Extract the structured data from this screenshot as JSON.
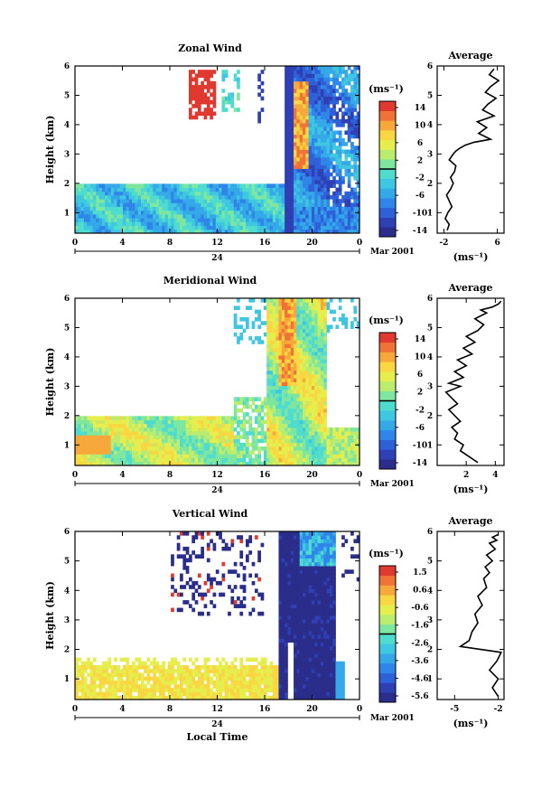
{
  "colors": {
    "scale": [
      "#2a2d8a",
      "#2f3fb4",
      "#2e60d8",
      "#2f86e8",
      "#35a8e8",
      "#3fc6e0",
      "#4fdccf",
      "#7fe6a0",
      "#b9ec6f",
      "#e6ee4e",
      "#f8d742",
      "#f7a83a",
      "#ef7336",
      "#e0392f"
    ]
  },
  "chart_data": [
    {
      "type": "heatmap",
      "title": "Zonal Wind",
      "ylabel": "Height (km)",
      "xlabel": "",
      "xlim": [
        0,
        24
      ],
      "ylim": [
        0.3,
        6
      ],
      "x_ticks": [
        "0",
        "4",
        "8",
        "12",
        "16",
        "20",
        "0"
      ],
      "y_ticks": [
        "1",
        "2",
        "3",
        "4",
        "5",
        "6"
      ],
      "day_label": "24",
      "date_label": "Mar 2001",
      "colorbar": {
        "unit": "(ms⁻¹)",
        "ticks": [
          "14",
          "10",
          "6",
          "2",
          "-2",
          "-6",
          "-10",
          "-14"
        ],
        "range": [
          -14,
          14
        ]
      },
      "average": {
        "title": "Average",
        "unit": "(ms⁻¹)",
        "x_ticks": [
          "-2",
          "6"
        ],
        "xlim": [
          -3,
          7
        ],
        "profile_x": [
          -1.5,
          -1.2,
          -1.8,
          -1.4,
          -0.8,
          -1.2,
          -1.6,
          -1.0,
          -0.6,
          -1.0,
          -0.4,
          -0.2,
          -1.2,
          -0.6,
          -0.2,
          0.4,
          1.2,
          2.5,
          5.0,
          3.2,
          4.4,
          3.0,
          5.5,
          3.8,
          4.6,
          5.8,
          4.2,
          5.0,
          6.2,
          4.8,
          5.5
        ],
        "profile_y": [
          0.4,
          0.6,
          0.8,
          1.0,
          1.2,
          1.4,
          1.6,
          1.8,
          2.0,
          2.2,
          2.4,
          2.6,
          2.8,
          3.0,
          3.1,
          3.2,
          3.3,
          3.4,
          3.5,
          3.7,
          3.9,
          4.1,
          4.3,
          4.5,
          4.7,
          4.9,
          5.1,
          5.3,
          5.5,
          5.7,
          5.9
        ]
      }
    },
    {
      "type": "heatmap",
      "title": "Meridional Wind",
      "ylabel": "Height (km)",
      "xlabel": "",
      "xlim": [
        0,
        24
      ],
      "ylim": [
        0.3,
        6
      ],
      "x_ticks": [
        "0",
        "4",
        "8",
        "12",
        "16",
        "20",
        "0"
      ],
      "y_ticks": [
        "1",
        "2",
        "3",
        "4",
        "5",
        "6"
      ],
      "day_label": "24",
      "date_label": "Mar 2001",
      "colorbar": {
        "unit": "(ms⁻¹)",
        "ticks": [
          "14",
          "10",
          "6",
          "2",
          "-2",
          "-6",
          "-10",
          "-14"
        ],
        "range": [
          -14,
          14
        ]
      },
      "average": {
        "title": "Average",
        "unit": "(ms⁻¹)",
        "x_ticks": [
          "2",
          "4"
        ],
        "xlim": [
          0,
          4.6
        ],
        "profile_x": [
          2.8,
          2.2,
          1.6,
          1.8,
          1.2,
          1.4,
          1.0,
          1.6,
          1.2,
          0.8,
          1.4,
          1.0,
          0.6,
          1.6,
          0.8,
          1.8,
          1.2,
          2.0,
          1.4,
          2.4,
          1.8,
          2.6,
          2.0,
          2.8,
          3.2,
          2.6,
          3.4,
          3.0,
          3.8,
          4.2,
          4.4
        ],
        "profile_y": [
          0.4,
          0.6,
          0.8,
          1.0,
          1.2,
          1.4,
          1.6,
          1.8,
          2.0,
          2.2,
          2.4,
          2.6,
          2.8,
          3.0,
          3.1,
          3.3,
          3.5,
          3.7,
          3.9,
          4.1,
          4.3,
          4.5,
          4.7,
          4.9,
          5.1,
          5.3,
          5.5,
          5.6,
          5.7,
          5.8,
          5.9
        ]
      }
    },
    {
      "type": "heatmap",
      "title": "Vertical Wind",
      "ylabel": "Height (km)",
      "xlabel": "Local Time",
      "xlim": [
        0,
        24
      ],
      "ylim": [
        0.3,
        6
      ],
      "x_ticks": [
        "0",
        "4",
        "8",
        "12",
        "16",
        "20",
        "0"
      ],
      "y_ticks": [
        "1",
        "2",
        "3",
        "4",
        "5",
        "6"
      ],
      "day_label": "24",
      "date_label": "Mar 2001",
      "colorbar": {
        "unit": "(ms⁻¹)",
        "ticks": [
          "1.5",
          "0.6",
          "-0.6",
          "-1.6",
          "-2.6",
          "-3.6",
          "-4.6",
          "-5.6"
        ],
        "range": [
          -6,
          2
        ]
      },
      "average": {
        "title": "Average",
        "unit": "(ms⁻¹)",
        "x_ticks": [
          "-5",
          "-2"
        ],
        "xlim": [
          -6.2,
          -1.6
        ],
        "profile_x": [
          -2.0,
          -2.4,
          -2.0,
          -2.6,
          -2.1,
          -1.8,
          -4.6,
          -4.0,
          -3.8,
          -3.4,
          -3.6,
          -3.1,
          -3.4,
          -2.8,
          -3.0,
          -2.6,
          -2.9,
          -2.4,
          -2.8,
          -2.2,
          -2.6,
          -2.1,
          -2.4,
          -2.0
        ],
        "profile_y": [
          0.4,
          0.7,
          1.0,
          1.3,
          1.6,
          1.9,
          2.1,
          2.3,
          2.6,
          2.9,
          3.2,
          3.5,
          3.8,
          4.1,
          4.4,
          4.6,
          4.8,
          5.0,
          5.2,
          5.4,
          5.6,
          5.7,
          5.8,
          5.9
        ]
      }
    }
  ]
}
